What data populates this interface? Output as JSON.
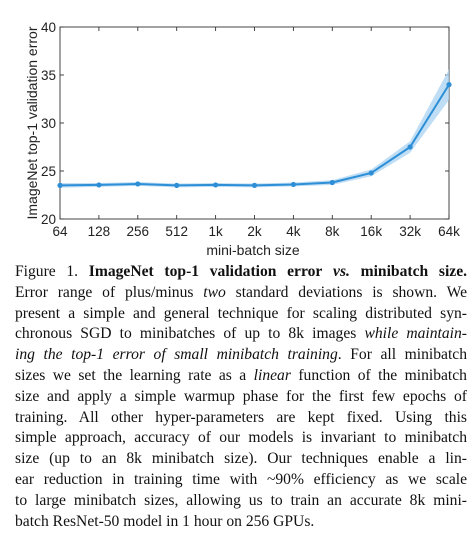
{
  "chart_data": {
    "type": "line",
    "title": "",
    "xlabel": "mini-batch size",
    "ylabel": "ImageNet top-1 validation error",
    "categories": [
      "64",
      "128",
      "256",
      "512",
      "1k",
      "2k",
      "4k",
      "8k",
      "16k",
      "32k",
      "64k"
    ],
    "ylim": [
      20,
      40
    ],
    "yticks": [
      "20",
      "25",
      "30",
      "35",
      "40"
    ],
    "series": [
      {
        "values": [
          23.5,
          23.55,
          23.65,
          23.5,
          23.55,
          23.5,
          23.6,
          23.8,
          24.8,
          27.5,
          34.0
        ],
        "band": [
          0.25,
          0.2,
          0.2,
          0.2,
          0.2,
          0.2,
          0.2,
          0.25,
          0.35,
          0.6,
          1.6
        ]
      }
    ],
    "color": "#2e8fd6",
    "band_color": "#a9d3f1",
    "grid": false
  },
  "caption": {
    "label": "Figure 1.",
    "bold_title": "ImageNet top-1 validation error",
    "vs": "vs.",
    "bold_title_end": "minibatch size.",
    "l2a": "Error range of plus/minus ",
    "l2b": "two",
    "l2c": " standard deviations is shown.  We",
    "l3": "present a simple and general technique for scaling distributed syn-",
    "l4a": "chronous SGD to minibatches of up to 8k images ",
    "l4b": "while maintain-",
    "l5a": "ing the top-1 error of small minibatch training",
    "l5b": ". For all minibatch",
    "l6a": "sizes we set the learning rate as a ",
    "l6b": "linear",
    "l6c": " function of the minibatch",
    "l7": "size and apply a simple warmup phase for the first few epochs of",
    "l8": "training.  All other hyper-parameters are kept fixed.  Using this",
    "l9": "simple approach, accuracy of our models is invariant to minibatch",
    "l10": "size (up to an 8k minibatch size).  Our techniques enable a lin-",
    "l11": "ear reduction in training time with ~90% efficiency as we scale",
    "l12": "to large minibatch sizes, allowing us to train an accurate 8k mini-",
    "l13": "batch ResNet-50 model in 1 hour on 256 GPUs."
  }
}
